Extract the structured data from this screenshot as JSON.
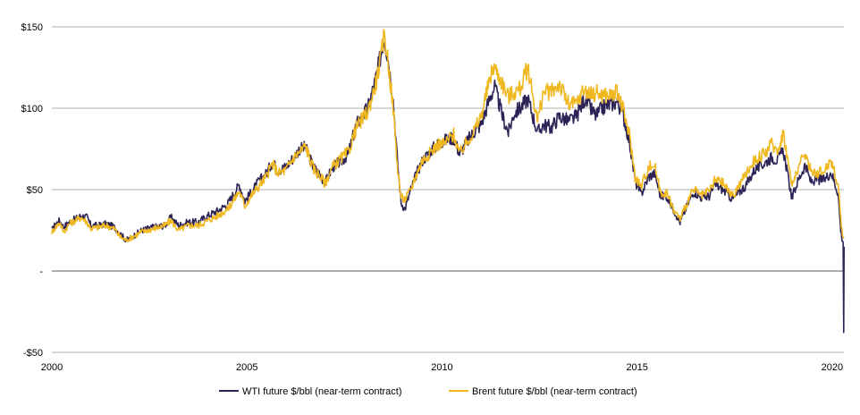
{
  "chart_data": {
    "type": "line",
    "title": "",
    "xlabel": "",
    "ylabel": "",
    "xlim": [
      2000,
      2020.3
    ],
    "ylim": [
      -50,
      150
    ],
    "grid": true,
    "legend_position": "bottom-center",
    "y_ticks": [
      {
        "value": 150,
        "label": "$150",
        "color": "#000000"
      },
      {
        "value": 100,
        "label": "$100",
        "color": "#000000"
      },
      {
        "value": 50,
        "label": "$50",
        "color": "#000000"
      },
      {
        "value": 0,
        "label": "-",
        "color": "#000000"
      },
      {
        "value": -50,
        "label": "-$50",
        "color": "#e01a1a"
      }
    ],
    "x_ticks": [
      {
        "value": 2000,
        "label": "2000"
      },
      {
        "value": 2005,
        "label": "2005"
      },
      {
        "value": 2010,
        "label": "2010"
      },
      {
        "value": 2015,
        "label": "2015"
      },
      {
        "value": 2020,
        "label": "2020"
      }
    ],
    "series": [
      {
        "name": "WTI future $/bbl (near-term contract)",
        "color": "#2e2357",
        "points": [
          [
            2000.0,
            25
          ],
          [
            2000.1,
            29
          ],
          [
            2000.2,
            31
          ],
          [
            2000.3,
            27
          ],
          [
            2000.45,
            30
          ],
          [
            2000.6,
            32
          ],
          [
            2000.75,
            34
          ],
          [
            2000.9,
            33
          ],
          [
            2001.0,
            28
          ],
          [
            2001.2,
            28
          ],
          [
            2001.4,
            29
          ],
          [
            2001.6,
            27
          ],
          [
            2001.75,
            23
          ],
          [
            2001.9,
            19
          ],
          [
            2002.0,
            20
          ],
          [
            2002.3,
            25
          ],
          [
            2002.6,
            27
          ],
          [
            2002.9,
            28
          ],
          [
            2003.05,
            33
          ],
          [
            2003.25,
            28
          ],
          [
            2003.5,
            30
          ],
          [
            2003.75,
            30
          ],
          [
            2004.0,
            34
          ],
          [
            2004.25,
            37
          ],
          [
            2004.5,
            41
          ],
          [
            2004.65,
            47
          ],
          [
            2004.8,
            53
          ],
          [
            2004.95,
            43
          ],
          [
            2005.1,
            48
          ],
          [
            2005.3,
            55
          ],
          [
            2005.5,
            60
          ],
          [
            2005.65,
            67
          ],
          [
            2005.8,
            62
          ],
          [
            2006.0,
            64
          ],
          [
            2006.2,
            70
          ],
          [
            2006.35,
            75
          ],
          [
            2006.5,
            76
          ],
          [
            2006.7,
            64
          ],
          [
            2006.85,
            60
          ],
          [
            2007.0,
            54
          ],
          [
            2007.2,
            64
          ],
          [
            2007.45,
            68
          ],
          [
            2007.6,
            72
          ],
          [
            2007.8,
            90
          ],
          [
            2007.95,
            95
          ],
          [
            2008.1,
            100
          ],
          [
            2008.3,
            118
          ],
          [
            2008.45,
            135
          ],
          [
            2008.52,
            144
          ],
          [
            2008.62,
            130
          ],
          [
            2008.75,
            105
          ],
          [
            2008.85,
            70
          ],
          [
            2008.95,
            42
          ],
          [
            2009.05,
            38
          ],
          [
            2009.2,
            50
          ],
          [
            2009.35,
            60
          ],
          [
            2009.5,
            68
          ],
          [
            2009.75,
            75
          ],
          [
            2009.9,
            78
          ],
          [
            2010.05,
            80
          ],
          [
            2010.3,
            82
          ],
          [
            2010.45,
            72
          ],
          [
            2010.6,
            78
          ],
          [
            2010.8,
            85
          ],
          [
            2011.0,
            90
          ],
          [
            2011.25,
            108
          ],
          [
            2011.35,
            113
          ],
          [
            2011.55,
            95
          ],
          [
            2011.7,
            85
          ],
          [
            2011.85,
            97
          ],
          [
            2012.0,
            100
          ],
          [
            2012.2,
            106
          ],
          [
            2012.45,
            85
          ],
          [
            2012.6,
            90
          ],
          [
            2012.8,
            88
          ],
          [
            2013.0,
            95
          ],
          [
            2013.25,
            92
          ],
          [
            2013.45,
            95
          ],
          [
            2013.65,
            106
          ],
          [
            2013.8,
            100
          ],
          [
            2013.95,
            95
          ],
          [
            2014.1,
            100
          ],
          [
            2014.35,
            103
          ],
          [
            2014.5,
            104
          ],
          [
            2014.65,
            95
          ],
          [
            2014.8,
            80
          ],
          [
            2014.95,
            55
          ],
          [
            2015.1,
            47
          ],
          [
            2015.3,
            58
          ],
          [
            2015.45,
            60
          ],
          [
            2015.6,
            46
          ],
          [
            2015.75,
            46
          ],
          [
            2015.95,
            37
          ],
          [
            2016.1,
            30
          ],
          [
            2016.3,
            41
          ],
          [
            2016.45,
            49
          ],
          [
            2016.65,
            45
          ],
          [
            2016.85,
            46
          ],
          [
            2017.0,
            53
          ],
          [
            2017.2,
            50
          ],
          [
            2017.45,
            44
          ],
          [
            2017.6,
            48
          ],
          [
            2017.8,
            53
          ],
          [
            2018.0,
            62
          ],
          [
            2018.25,
            66
          ],
          [
            2018.45,
            70
          ],
          [
            2018.6,
            68
          ],
          [
            2018.75,
            74
          ],
          [
            2018.85,
            60
          ],
          [
            2018.97,
            45
          ],
          [
            2019.1,
            54
          ],
          [
            2019.3,
            65
          ],
          [
            2019.45,
            55
          ],
          [
            2019.6,
            56
          ],
          [
            2019.8,
            56
          ],
          [
            2019.97,
            61
          ],
          [
            2020.05,
            55
          ],
          [
            2020.15,
            48
          ],
          [
            2020.22,
            25
          ],
          [
            2020.25,
            20
          ],
          [
            2020.28,
            18
          ],
          [
            2020.295,
            -37
          ],
          [
            2020.305,
            15
          ]
        ]
      },
      {
        "name": "Brent future $/bbl (near-term contract)",
        "color": "#f0b820",
        "points": [
          [
            2000.0,
            24
          ],
          [
            2000.1,
            27
          ],
          [
            2000.2,
            30
          ],
          [
            2000.3,
            24
          ],
          [
            2000.45,
            29
          ],
          [
            2000.6,
            31
          ],
          [
            2000.75,
            33
          ],
          [
            2000.9,
            30
          ],
          [
            2001.0,
            26
          ],
          [
            2001.2,
            27
          ],
          [
            2001.4,
            28
          ],
          [
            2001.6,
            26
          ],
          [
            2001.75,
            21
          ],
          [
            2001.9,
            19
          ],
          [
            2002.0,
            20
          ],
          [
            2002.3,
            24
          ],
          [
            2002.6,
            26
          ],
          [
            2002.9,
            28
          ],
          [
            2003.05,
            31
          ],
          [
            2003.25,
            25
          ],
          [
            2003.5,
            28
          ],
          [
            2003.75,
            28
          ],
          [
            2004.0,
            31
          ],
          [
            2004.25,
            34
          ],
          [
            2004.5,
            38
          ],
          [
            2004.65,
            43
          ],
          [
            2004.8,
            49
          ],
          [
            2004.95,
            40
          ],
          [
            2005.1,
            46
          ],
          [
            2005.3,
            52
          ],
          [
            2005.5,
            58
          ],
          [
            2005.65,
            66
          ],
          [
            2005.8,
            60
          ],
          [
            2006.0,
            62
          ],
          [
            2006.2,
            70
          ],
          [
            2006.35,
            73
          ],
          [
            2006.5,
            77
          ],
          [
            2006.7,
            63
          ],
          [
            2006.85,
            59
          ],
          [
            2007.0,
            54
          ],
          [
            2007.2,
            64
          ],
          [
            2007.45,
            70
          ],
          [
            2007.6,
            73
          ],
          [
            2007.8,
            88
          ],
          [
            2007.95,
            93
          ],
          [
            2008.1,
            98
          ],
          [
            2008.3,
            115
          ],
          [
            2008.45,
            133
          ],
          [
            2008.52,
            146
          ],
          [
            2008.62,
            128
          ],
          [
            2008.75,
            100
          ],
          [
            2008.85,
            66
          ],
          [
            2008.95,
            45
          ],
          [
            2009.05,
            44
          ],
          [
            2009.2,
            50
          ],
          [
            2009.35,
            60
          ],
          [
            2009.5,
            68
          ],
          [
            2009.75,
            74
          ],
          [
            2009.9,
            78
          ],
          [
            2010.05,
            78
          ],
          [
            2010.3,
            84
          ],
          [
            2010.45,
            72
          ],
          [
            2010.6,
            78
          ],
          [
            2010.8,
            85
          ],
          [
            2011.0,
            95
          ],
          [
            2011.2,
            115
          ],
          [
            2011.32,
            126
          ],
          [
            2011.55,
            115
          ],
          [
            2011.7,
            107
          ],
          [
            2011.85,
            110
          ],
          [
            2012.0,
            112
          ],
          [
            2012.2,
            125
          ],
          [
            2012.45,
            92
          ],
          [
            2012.6,
            110
          ],
          [
            2012.8,
            110
          ],
          [
            2013.0,
            115
          ],
          [
            2013.25,
            102
          ],
          [
            2013.45,
            103
          ],
          [
            2013.65,
            112
          ],
          [
            2013.8,
            108
          ],
          [
            2013.95,
            110
          ],
          [
            2014.1,
            108
          ],
          [
            2014.35,
            108
          ],
          [
            2014.5,
            110
          ],
          [
            2014.65,
            98
          ],
          [
            2014.8,
            84
          ],
          [
            2014.95,
            58
          ],
          [
            2015.1,
            52
          ],
          [
            2015.3,
            64
          ],
          [
            2015.45,
            65
          ],
          [
            2015.6,
            48
          ],
          [
            2015.75,
            48
          ],
          [
            2015.95,
            37
          ],
          [
            2016.1,
            32
          ],
          [
            2016.3,
            43
          ],
          [
            2016.45,
            50
          ],
          [
            2016.65,
            46
          ],
          [
            2016.85,
            49
          ],
          [
            2017.0,
            56
          ],
          [
            2017.2,
            54
          ],
          [
            2017.45,
            46
          ],
          [
            2017.6,
            52
          ],
          [
            2017.8,
            60
          ],
          [
            2018.0,
            68
          ],
          [
            2018.25,
            72
          ],
          [
            2018.45,
            78
          ],
          [
            2018.6,
            74
          ],
          [
            2018.75,
            85
          ],
          [
            2018.85,
            70
          ],
          [
            2018.97,
            52
          ],
          [
            2019.1,
            62
          ],
          [
            2019.3,
            72
          ],
          [
            2019.45,
            62
          ],
          [
            2019.6,
            60
          ],
          [
            2019.8,
            62
          ],
          [
            2019.97,
            68
          ],
          [
            2020.05,
            62
          ],
          [
            2020.15,
            52
          ],
          [
            2020.22,
            32
          ],
          [
            2020.25,
            25
          ],
          [
            2020.28,
            22
          ],
          [
            2020.3,
            20
          ]
        ]
      }
    ]
  }
}
